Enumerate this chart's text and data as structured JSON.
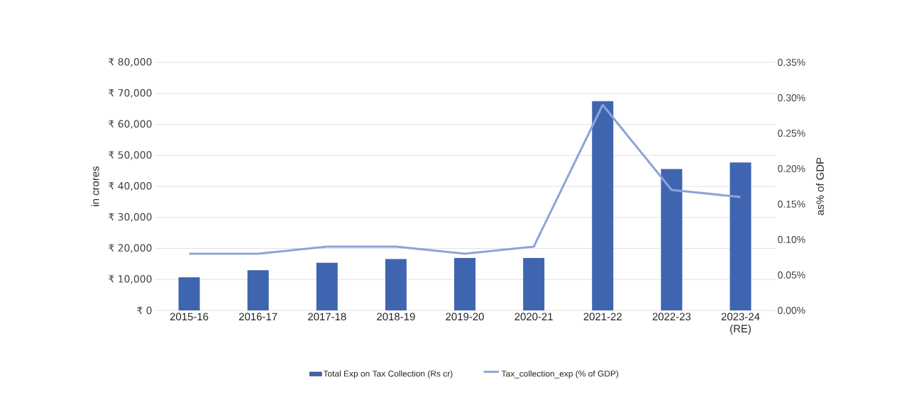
{
  "chart_data": {
    "type": "bar",
    "categories": [
      "2015-16",
      "2016-17",
      "2017-18",
      "2018-19",
      "2019-20",
      "2020-21",
      "2021-22",
      "2022-23",
      "2023-24 (RE)"
    ],
    "series": [
      {
        "name": "Total Exp on Tax Collection (Rs cr)",
        "color": "#4065b0",
        "values": [
          10700,
          13000,
          15400,
          16600,
          16900,
          16900,
          67500,
          45600,
          47700
        ]
      },
      {
        "name": "Tax_collection_exp (% of GDP)",
        "type": "line",
        "axis": "y2",
        "color": "#8fa3d8",
        "values": [
          0.08,
          0.08,
          0.09,
          0.09,
          0.08,
          0.09,
          0.29,
          0.17,
          0.16
        ]
      }
    ],
    "ylabel": "in crores",
    "y2label": "as% of GDP",
    "ylim": [
      0,
      80000
    ],
    "yticks": [
      {
        "value": 0,
        "label": "₹ 0"
      },
      {
        "value": 10000,
        "label": "₹ 10,000"
      },
      {
        "value": 20000,
        "label": "₹ 20,000"
      },
      {
        "value": 30000,
        "label": "₹ 30,000"
      },
      {
        "value": 40000,
        "label": "₹ 40,000"
      },
      {
        "value": 50000,
        "label": "₹ 50,000"
      },
      {
        "value": 60000,
        "label": "₹ 60,000"
      },
      {
        "value": 70000,
        "label": "₹ 70,000"
      },
      {
        "value": 80000,
        "label": "₹ 80,000"
      }
    ],
    "y2lim": [
      0,
      0.35
    ],
    "y2ticks": [
      {
        "value": 0,
        "label": "0.00%"
      },
      {
        "value": 0.05,
        "label": "0.05%"
      },
      {
        "value": 0.1,
        "label": "0.10%"
      },
      {
        "value": 0.15,
        "label": "0.15%"
      },
      {
        "value": 0.2,
        "label": "0.20%"
      },
      {
        "value": 0.25,
        "label": "0.25%"
      },
      {
        "value": 0.3,
        "label": "0.30%"
      },
      {
        "value": 0.35,
        "label": "0.35%"
      }
    ],
    "grid": "y",
    "legend": "bottom"
  }
}
